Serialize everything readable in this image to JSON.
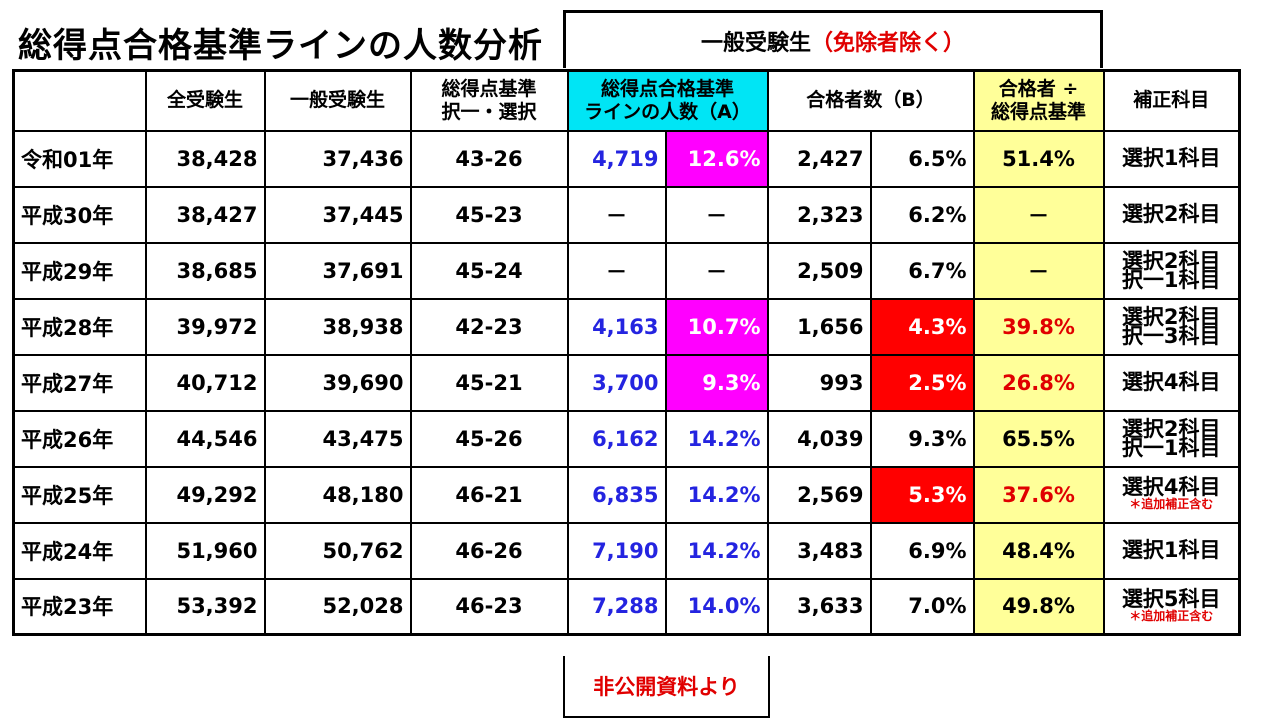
{
  "title": "総得点合格基準ラインの人数分析",
  "banner": {
    "main": "一般受験生",
    "note": "（免除者除く）"
  },
  "headers": {
    "c1": "全受験生",
    "c2": "一般受験生",
    "c3a": "総得点基準",
    "c3b": "択一・選択",
    "c4a": "総得点合格基準",
    "c4b": "ラインの人数（A）",
    "c5": "合格者数（B）",
    "c6a": "合格者 ÷",
    "c6b": "総得点基準",
    "c7": "補正科目"
  },
  "rows": [
    {
      "year": "令和01年",
      "all": "38,428",
      "general": "37,436",
      "line": "43-26",
      "a": "4,719",
      "a_pct": "12.6%",
      "b": "2,427",
      "b_pct": "6.5%",
      "ratio": "51.4%",
      "subj1": "選択1科目",
      "subj2": "",
      "subj_note": ""
    },
    {
      "year": "平成30年",
      "all": "38,427",
      "general": "37,445",
      "line": "45-23",
      "a": "－",
      "a_pct": "－",
      "b": "2,323",
      "b_pct": "6.2%",
      "ratio": "－",
      "subj1": "選択2科目",
      "subj2": "",
      "subj_note": ""
    },
    {
      "year": "平成29年",
      "all": "38,685",
      "general": "37,691",
      "line": "45-24",
      "a": "－",
      "a_pct": "－",
      "b": "2,509",
      "b_pct": "6.7%",
      "ratio": "－",
      "subj1": "選択2科目",
      "subj2": "択一1科目",
      "subj_note": ""
    },
    {
      "year": "平成28年",
      "all": "39,972",
      "general": "38,938",
      "line": "42-23",
      "a": "4,163",
      "a_pct": "10.7%",
      "b": "1,656",
      "b_pct": "4.3%",
      "ratio": "39.8%",
      "subj1": "選択2科目",
      "subj2": "択一3科目",
      "subj_note": ""
    },
    {
      "year": "平成27年",
      "all": "40,712",
      "general": "39,690",
      "line": "45-21",
      "a": "3,700",
      "a_pct": "9.3%",
      "b": "993",
      "b_pct": "2.5%",
      "ratio": "26.8%",
      "subj1": "選択4科目",
      "subj2": "",
      "subj_note": ""
    },
    {
      "year": "平成26年",
      "all": "44,546",
      "general": "43,475",
      "line": "45-26",
      "a": "6,162",
      "a_pct": "14.2%",
      "b": "4,039",
      "b_pct": "9.3%",
      "ratio": "65.5%",
      "subj1": "選択2科目",
      "subj2": "択一1科目",
      "subj_note": ""
    },
    {
      "year": "平成25年",
      "all": "49,292",
      "general": "48,180",
      "line": "46-21",
      "a": "6,835",
      "a_pct": "14.2%",
      "b": "2,569",
      "b_pct": "5.3%",
      "ratio": "37.6%",
      "subj1": "選択4科目",
      "subj2": "",
      "subj_note": "＊追加補正含む"
    },
    {
      "year": "平成24年",
      "all": "51,960",
      "general": "50,762",
      "line": "46-26",
      "a": "7,190",
      "a_pct": "14.2%",
      "b": "3,483",
      "b_pct": "6.9%",
      "ratio": "48.4%",
      "subj1": "選択1科目",
      "subj2": "",
      "subj_note": ""
    },
    {
      "year": "平成23年",
      "all": "53,392",
      "general": "52,028",
      "line": "46-23",
      "a": "7,288",
      "a_pct": "14.0%",
      "b": "3,633",
      "b_pct": "7.0%",
      "ratio": "49.8%",
      "subj1": "選択5科目",
      "subj2": "",
      "subj_note": "＊追加補正含む"
    }
  ],
  "highlight_colors": {
    "magenta": "#ff00ff",
    "red": "#ff0000",
    "yellow": "#ffff99",
    "cyan": "#00e5f5",
    "blue_text": "#2424e0",
    "red_text": "#e00000"
  },
  "footer": "非公開資料より"
}
